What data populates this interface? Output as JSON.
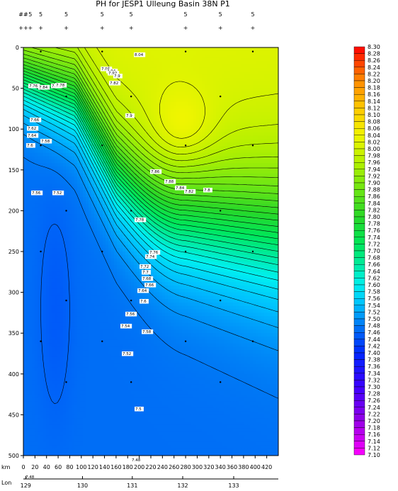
{
  "chart_data": {
    "type": "heatmap",
    "title": "PH for JESP1 Ulleung Basin 38N P1",
    "xlabel": "km",
    "lon_label": "Lon",
    "x_ticks": [
      0,
      20,
      40,
      60,
      80,
      100,
      120,
      140,
      160,
      180,
      200,
      220,
      240,
      260,
      280,
      300,
      320,
      340,
      360,
      380,
      400,
      420
    ],
    "xlim": [
      0,
      440
    ],
    "y_ticks": [
      0,
      50,
      100,
      150,
      200,
      250,
      300,
      350,
      400,
      450,
      500
    ],
    "ylim": [
      0,
      500
    ],
    "y_inverted": true,
    "lon_ticks": [
      129,
      130,
      131,
      132,
      133
    ],
    "lon_tick_km": [
      4,
      102,
      188,
      275,
      363
    ],
    "stations_km": [
      0,
      12,
      30,
      74,
      136,
      186,
      280,
      340,
      396,
      440
    ],
    "station_labels": [
      "##",
      "5",
      "5",
      "5",
      "5",
      "5",
      "5",
      "5",
      "5"
    ],
    "station_symbols": [
      "++",
      "+",
      "+",
      "+",
      "+",
      "+",
      "+",
      "+",
      "+"
    ],
    "colorbar": {
      "min": 7.1,
      "max": 8.3,
      "step": 0.02,
      "labels": [
        "8.30",
        "8.28",
        "8.26",
        "8.24",
        "8.22",
        "8.20",
        "8.18",
        "8.16",
        "8.14",
        "8.12",
        "8.10",
        "8.08",
        "8.06",
        "8.04",
        "8.02",
        "8.00",
        "7.98",
        "7.96",
        "7.94",
        "7.92",
        "7.90",
        "7.88",
        "7.86",
        "7.84",
        "7.82",
        "7.80",
        "7.78",
        "7.76",
        "7.74",
        "7.72",
        "7.70",
        "7.68",
        "7.66",
        "7.64",
        "7.62",
        "7.60",
        "7.58",
        "7.56",
        "7.54",
        "7.52",
        "7.50",
        "7.48",
        "7.46",
        "7.44",
        "7.42",
        "7.40",
        "7.38",
        "7.36",
        "7.34",
        "7.32",
        "7.30",
        "7.28",
        "7.26",
        "7.24",
        "7.22",
        "7.20",
        "7.18",
        "7.16",
        "7.14",
        "7.12",
        "7.10"
      ]
    },
    "field_model": {
      "surface_value": 8.02,
      "deep_value": 7.47,
      "description_keypoints": "surface ~8.02 near 0-50m; dome of ~7.9-8.0 centered 280km/100m; deep ~7.46-7.50 below 350m"
    },
    "contour_labels": [
      {
        "text": "8.04",
        "x": 157,
        "y": 12
      },
      {
        "text": "7.96",
        "x": 110,
        "y": 32
      },
      {
        "text": "7.94",
        "x": 118,
        "y": 35
      },
      {
        "text": "7.92",
        "x": 120,
        "y": 38
      },
      {
        "text": "7.9",
        "x": 128,
        "y": 42
      },
      {
        "text": "7.82",
        "x": 122,
        "y": 52
      },
      {
        "text": "7.76",
        "x": 8,
        "y": 56
      },
      {
        "text": "7.84",
        "x": 22,
        "y": 58
      },
      {
        "text": "7.74",
        "x": 40,
        "y": 56
      },
      {
        "text": "7.78",
        "x": 46,
        "y": 55
      },
      {
        "text": "7.9",
        "x": 145,
        "y": 98
      },
      {
        "text": "7.66",
        "x": 10,
        "y": 104
      },
      {
        "text": "7.62",
        "x": 6,
        "y": 116
      },
      {
        "text": "7.58",
        "x": 25,
        "y": 134
      },
      {
        "text": "7.64",
        "x": 6,
        "y": 126
      },
      {
        "text": "7.6",
        "x": 5,
        "y": 140
      },
      {
        "text": "7.56",
        "x": 12,
        "y": 207
      },
      {
        "text": "7.86",
        "x": 180,
        "y": 177
      },
      {
        "text": "7.88",
        "x": 200,
        "y": 191
      },
      {
        "text": "7.84",
        "x": 215,
        "y": 200
      },
      {
        "text": "7.82",
        "x": 228,
        "y": 205
      },
      {
        "text": "7.8",
        "x": 255,
        "y": 203
      },
      {
        "text": "7.78",
        "x": 158,
        "y": 245
      },
      {
        "text": "7.76",
        "x": 178,
        "y": 291
      },
      {
        "text": "7.74",
        "x": 173,
        "y": 297
      },
      {
        "text": "7.72",
        "x": 165,
        "y": 311
      },
      {
        "text": "7.7",
        "x": 168,
        "y": 319
      },
      {
        "text": "7.68",
        "x": 168,
        "y": 328
      },
      {
        "text": "7.66",
        "x": 172,
        "y": 337
      },
      {
        "text": "7.64",
        "x": 162,
        "y": 345
      },
      {
        "text": "7.52",
        "x": 42,
        "y": 207
      },
      {
        "text": "7.6",
        "x": 165,
        "y": 360
      },
      {
        "text": "7.56",
        "x": 145,
        "y": 378
      },
      {
        "text": "7.54",
        "x": 138,
        "y": 395
      },
      {
        "text": "7.58",
        "x": 168,
        "y": 403
      },
      {
        "text": "7.52",
        "x": 140,
        "y": 434
      },
      {
        "text": "7.5",
        "x": 158,
        "y": 512
      },
      {
        "text": "7.48",
        "x": 153,
        "y": 584
      },
      {
        "text": "7.48",
        "x": 3,
        "y": 608
      }
    ]
  }
}
